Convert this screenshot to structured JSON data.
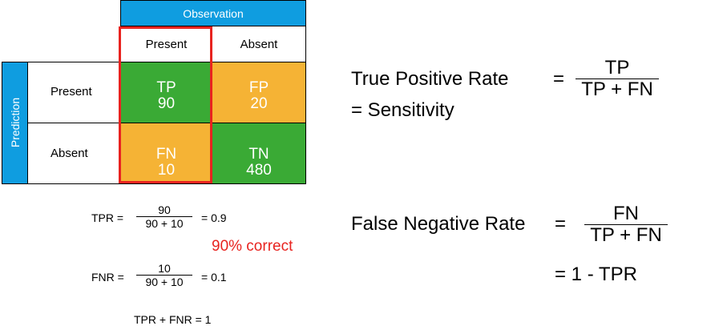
{
  "matrix": {
    "observation_header": "Observation",
    "prediction_header": "Prediction",
    "col_present": "Present",
    "col_absent": "Absent",
    "row_present": "Present",
    "row_absent": "Absent",
    "tp": {
      "label": "TP",
      "value": "90"
    },
    "fp": {
      "label": "FP",
      "value": "20"
    },
    "fn": {
      "label": "FN",
      "value": "10"
    },
    "tn": {
      "label": "TN",
      "value": "480"
    },
    "colors": {
      "header_blue": "#0f9de0",
      "green": "#3aaa35",
      "orange": "#f5b335",
      "highlight_red": "#e8231f"
    }
  },
  "calc": {
    "tpr_label": "TPR =",
    "tpr_num": "90",
    "tpr_den": "90 + 10",
    "tpr_result": "= 0.9",
    "correct": "90% correct",
    "fnr_label": "FNR =",
    "fnr_num": "10",
    "fnr_den": "90 + 10",
    "fnr_result": "= 0.1",
    "sum": "TPR + FNR = 1"
  },
  "definitions": {
    "tpr_name": "True Positive Rate",
    "tpr_alias": "= Sensitivity",
    "tpr_eq": "=",
    "tpr_num": "TP",
    "tpr_den": "TP + FN",
    "fnr_name": "False Negative Rate",
    "fnr_eq": "=",
    "fnr_num": "FN",
    "fnr_den": "TP + FN",
    "fnr_alt": "= 1 - TPR"
  }
}
